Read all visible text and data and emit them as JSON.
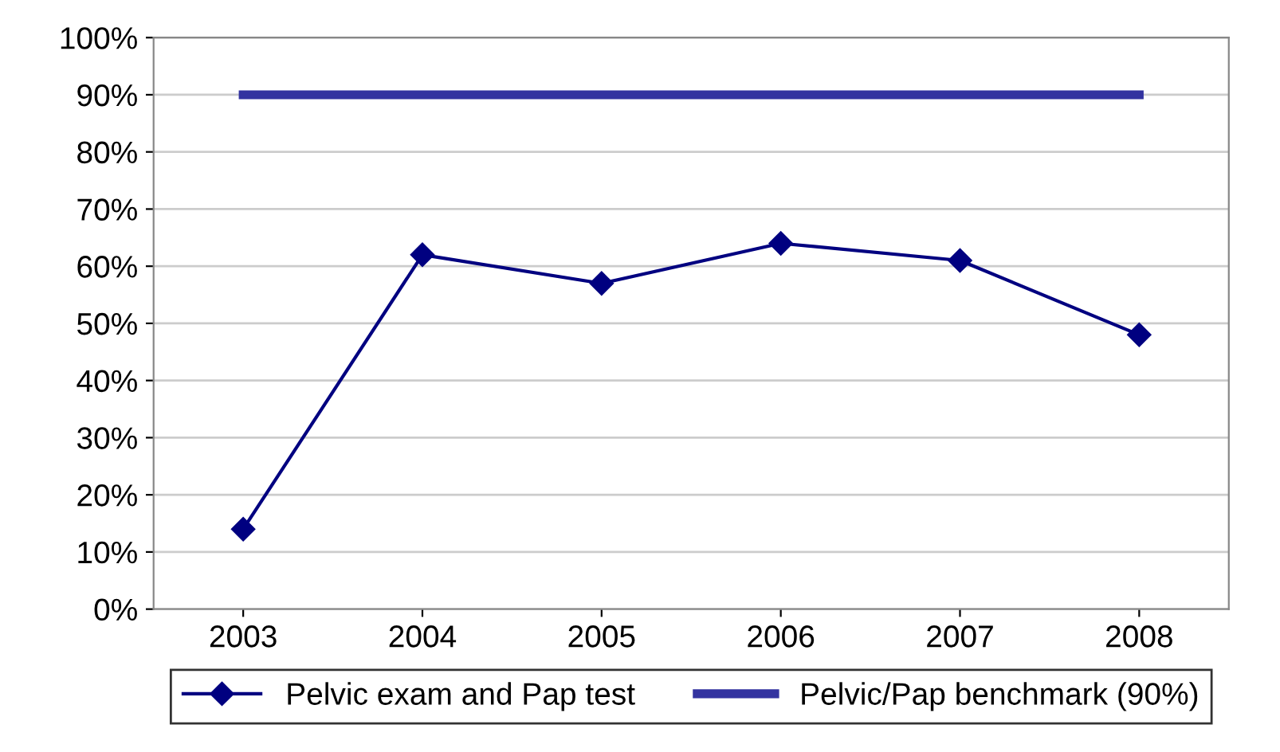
{
  "chart_data": {
    "type": "line",
    "categories": [
      "2003",
      "2004",
      "2005",
      "2006",
      "2007",
      "2008"
    ],
    "series": [
      {
        "name": "Pelvic exam and Pap test",
        "color": "#000080",
        "marker": "diamond",
        "values": [
          14,
          62,
          57,
          64,
          61,
          48
        ]
      },
      {
        "name": "Pelvic/Pap benchmark (90%)",
        "color": "#3333a0",
        "marker": "none",
        "values": [
          90,
          90,
          90,
          90,
          90,
          90
        ]
      }
    ],
    "ylim": [
      0,
      100
    ],
    "yticks": [
      {
        "value": 0,
        "label": "0%"
      },
      {
        "value": 10,
        "label": "10%"
      },
      {
        "value": 20,
        "label": "20%"
      },
      {
        "value": 30,
        "label": "30%"
      },
      {
        "value": 40,
        "label": "40%"
      },
      {
        "value": 50,
        "label": "50%"
      },
      {
        "value": 60,
        "label": "60%"
      },
      {
        "value": 70,
        "label": "70%"
      },
      {
        "value": 80,
        "label": "80%"
      },
      {
        "value": 90,
        "label": "90%"
      },
      {
        "value": 100,
        "label": "100%"
      }
    ],
    "grid": "y",
    "legend": "bottom",
    "line_style": "solid"
  }
}
